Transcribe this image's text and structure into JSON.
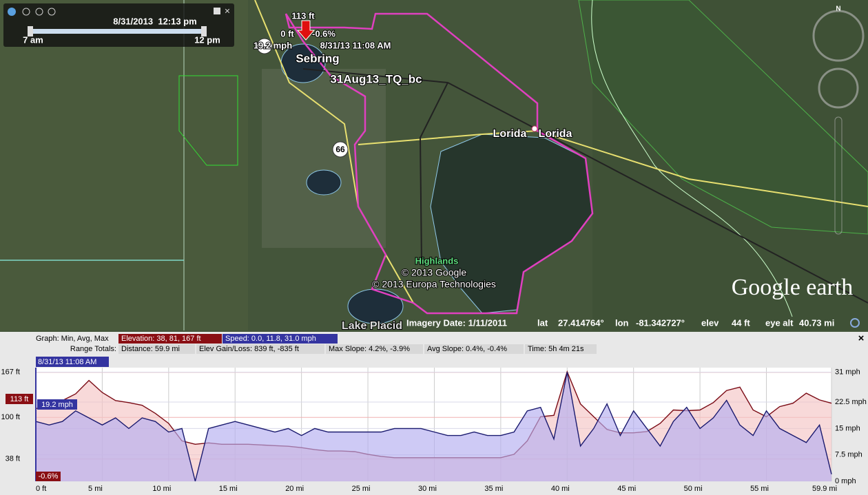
{
  "time_slider": {
    "date_time": "8/31/2013  12:13 pm",
    "start": "7 am",
    "end": "12 pm"
  },
  "compass": "N",
  "map_labels": [
    "113 ft",
    "0 ft",
    "-0.6%",
    "19.2 mph",
    "8/31/13 11:08 AM",
    "Sebring",
    "31Aug13_TQ_bc",
    "Lorida",
    "Lorida",
    "66",
    "Highlands",
    "© 2013 Google",
    "© 2013 Europa Technologies",
    "Lake Placid"
  ],
  "logo": "Google earth",
  "status_bar": {
    "imagery_date": "Imagery Date: 1/11/2011",
    "lat_label": "lat",
    "lat": "27.414764°",
    "lon_label": "lon",
    "lon": "-81.342727°",
    "elev_label": "elev",
    "elev": "44 ft",
    "eye_alt_label": "eye alt",
    "eye_alt": "40.73 mi"
  },
  "profile_header": {
    "graph_label": "Graph: Min, Avg, Max",
    "elevation_summary": "Elevation: 38, 81, 167 ft",
    "speed_summary": "Speed: 0.0, 11.8, 31.0 mph",
    "range_label": "Range Totals:",
    "distance": "Distance: 59.9 mi",
    "elev_gain_loss": "Elev Gain/Loss: 839 ft, -835 ft",
    "max_slope": "Max Slope: 4.2%, -3.9%",
    "avg_slope": "Avg Slope: 0.4%, -0.4%",
    "time": "Time: 5h 4m 21s",
    "close": "×"
  },
  "chart_data": {
    "type": "line",
    "cursor_time": "8/31/13 11:08 AM",
    "cursor_elevation": "113 ft",
    "cursor_slope": "-0.6%",
    "cursor_speed": "19.2 mph",
    "x": [
      0,
      1,
      2,
      3,
      4,
      5,
      6,
      7,
      8,
      9,
      10,
      11,
      12,
      13,
      14,
      15,
      16,
      17,
      18,
      19,
      20,
      21,
      22,
      23,
      24,
      25,
      26,
      27,
      28,
      29,
      30,
      31,
      32,
      33,
      34,
      35,
      36,
      37,
      38,
      39,
      40,
      41,
      42,
      43,
      44,
      45,
      46,
      47,
      48,
      49,
      50,
      51,
      52,
      53,
      54,
      55,
      56,
      57,
      58,
      59,
      59.9
    ],
    "series": [
      {
        "name": "Elevation",
        "color": "#7a0a14",
        "fill": "#f4c4c4",
        "values": [
          113,
          118,
          125,
          135,
          155,
          137,
          125,
          122,
          118,
          106,
          91,
          65,
          60,
          62,
          60,
          60,
          60,
          59,
          58,
          57,
          55,
          52,
          50,
          50,
          49,
          45,
          42,
          40,
          40,
          40,
          40,
          40,
          40,
          40,
          40,
          40,
          45,
          65,
          101,
          103,
          168,
          120,
          101,
          82,
          77,
          77,
          79,
          91,
          111,
          110,
          111,
          122,
          140,
          145,
          111,
          101,
          116,
          121,
          136,
          126,
          121
        ]
      },
      {
        "name": "Speed",
        "color": "#1a1a6e",
        "fill": "#b4aef0",
        "axis": "y2",
        "values": [
          17,
          16,
          17,
          20,
          18,
          16,
          18,
          15,
          18,
          17,
          14,
          15,
          0,
          15,
          16,
          17,
          16,
          15,
          14,
          15,
          13,
          15,
          14,
          14,
          14,
          14,
          14,
          15,
          15,
          15,
          14,
          13,
          13,
          14,
          13,
          13,
          14,
          20,
          21,
          12,
          31,
          10,
          15,
          22,
          13,
          20,
          15,
          10,
          17,
          21,
          15,
          18,
          23,
          16,
          13,
          20,
          15,
          13,
          11,
          16,
          2
        ]
      }
    ],
    "xlim": [
      0,
      59.9
    ],
    "xticks": [
      {
        "value": 0,
        "label": "0 ft"
      },
      {
        "value": 5,
        "label": "5 mi"
      },
      {
        "value": 10,
        "label": "10 mi"
      },
      {
        "value": 15,
        "label": "15 mi"
      },
      {
        "value": 20,
        "label": "20 mi"
      },
      {
        "value": 25,
        "label": "25 mi"
      },
      {
        "value": 30,
        "label": "30 mi"
      },
      {
        "value": 35,
        "label": "35 mi"
      },
      {
        "value": 40,
        "label": "40 mi"
      },
      {
        "value": 45,
        "label": "45 mi"
      },
      {
        "value": 50,
        "label": "50 mi"
      },
      {
        "value": 55,
        "label": "55 mi"
      },
      {
        "value": 59.9,
        "label": "59.9 mi"
      }
    ],
    "ylim": [
      5,
      174
    ],
    "yticks": [
      {
        "value": 38,
        "label": "38 ft"
      },
      {
        "value": 100,
        "label": "100 ft"
      },
      {
        "value": 167,
        "label": "167 ft"
      }
    ],
    "y2lim": [
      0,
      32.3
    ],
    "y2ticks": [
      {
        "value": 0,
        "label": "0 mph"
      },
      {
        "value": 7.5,
        "label": "7.5 mph"
      },
      {
        "value": 15,
        "label": "15 mph"
      },
      {
        "value": 22.5,
        "label": "22.5 mph"
      },
      {
        "value": 31,
        "label": "31 mph"
      }
    ],
    "grid": true
  }
}
